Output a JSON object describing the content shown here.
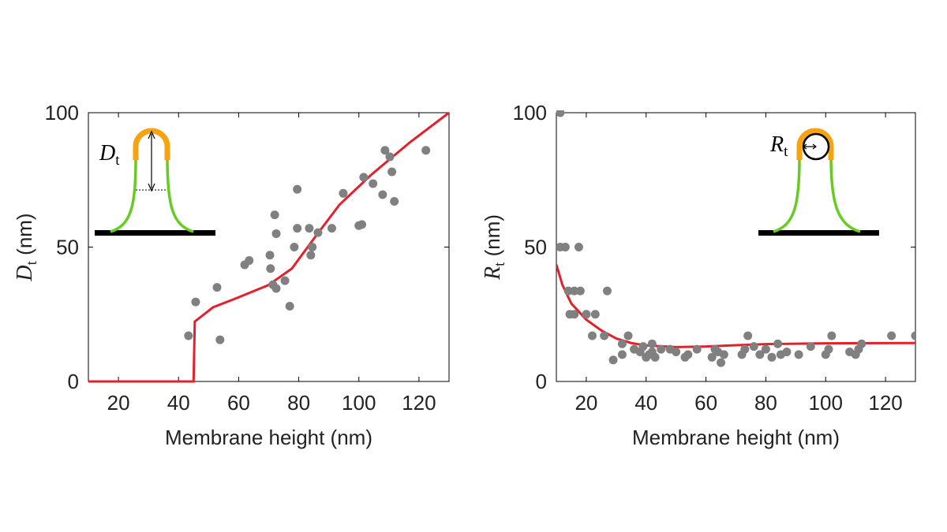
{
  "chart_data": [
    {
      "type": "scatter",
      "xlabel": "Membrane height (nm)",
      "ylabel": {
        "symbol": "D",
        "subscript": "t",
        "unit": "(nm)"
      },
      "inset_label": {
        "symbol": "D",
        "subscript": "t"
      },
      "xlim": [
        10,
        130
      ],
      "ylim": [
        0,
        100
      ],
      "xticks": [
        20,
        40,
        60,
        80,
        100,
        120
      ],
      "yticks": [
        0,
        50,
        100
      ],
      "points": {
        "color": "#808080",
        "x": [
          43.3,
          45.7,
          52.8,
          53.8,
          62,
          63.5,
          70.4,
          70.6,
          71.4,
          72,
          72.5,
          72.5,
          75.4,
          77,
          78.5,
          79.5,
          79.5,
          83.5,
          84,
          84.5,
          86.4,
          91,
          94.8,
          100,
          101,
          101.6,
          104.7,
          107.9,
          108.7,
          110.3,
          111,
          111.8,
          122.3
        ],
        "y": [
          17,
          29.6,
          35,
          15.5,
          43.4,
          45,
          47,
          42,
          36,
          62,
          55,
          34.6,
          37.5,
          28,
          50,
          71.5,
          57,
          57,
          47,
          50,
          55.4,
          57,
          70,
          58,
          58.4,
          76,
          73.6,
          69.5,
          86,
          83.6,
          78,
          67,
          86
        ]
      },
      "curve": {
        "color": "#e3202b",
        "x": [
          10,
          45,
          45.4,
          51.5,
          59.3,
          69.8,
          77.7,
          85.6,
          93.5,
          104,
          117,
          130
        ],
        "y": [
          0,
          0,
          22.3,
          27.6,
          31,
          35.8,
          42,
          54,
          65.7,
          76.8,
          89,
          100
        ]
      }
    },
    {
      "type": "scatter",
      "xlabel": "Membrane height (nm)",
      "ylabel": {
        "symbol": "R",
        "subscript": "t",
        "unit": "(nm)"
      },
      "inset_label": {
        "symbol": "R",
        "subscript": "t"
      },
      "xlim": [
        10,
        130
      ],
      "ylim": [
        0,
        100
      ],
      "xticks": [
        20,
        40,
        60,
        80,
        100,
        120
      ],
      "yticks": [
        0,
        50,
        100
      ],
      "points": {
        "color": "#808080",
        "x": [
          11.3,
          11.3,
          13,
          17.5,
          14,
          16,
          18,
          14.5,
          16,
          20,
          23,
          22,
          26,
          27,
          29,
          32,
          32,
          34,
          36,
          38,
          39,
          40,
          41,
          42,
          42,
          43,
          45,
          48,
          50,
          53,
          54,
          57,
          62,
          63,
          64,
          65,
          66,
          72,
          73,
          74,
          76,
          78,
          80,
          82,
          84,
          85,
          87,
          91,
          95,
          100,
          101,
          102,
          108,
          110,
          111,
          112,
          122,
          130
        ],
        "y": [
          100,
          50,
          50,
          50,
          33.7,
          33.7,
          33.7,
          25,
          25,
          25,
          25,
          17,
          17,
          33.7,
          8,
          10,
          14,
          17,
          12,
          11,
          13,
          9,
          10,
          11,
          14,
          9,
          12,
          12,
          11,
          9,
          10,
          12,
          9,
          12,
          11,
          7,
          10,
          10,
          12,
          17,
          13,
          10,
          12,
          9,
          14,
          10,
          11,
          10,
          13,
          10,
          12,
          17,
          11,
          10,
          12,
          14,
          17,
          17
        ]
      },
      "curve": {
        "color": "#e3202b",
        "x": [
          10,
          12,
          15,
          20,
          25,
          30,
          35,
          40,
          50,
          60,
          70,
          80,
          100,
          130
        ],
        "y": [
          43.5,
          36,
          29,
          23,
          19,
          16,
          14.3,
          13.4,
          12.8,
          13,
          13.5,
          13.9,
          14.2,
          14.3
        ]
      }
    }
  ]
}
